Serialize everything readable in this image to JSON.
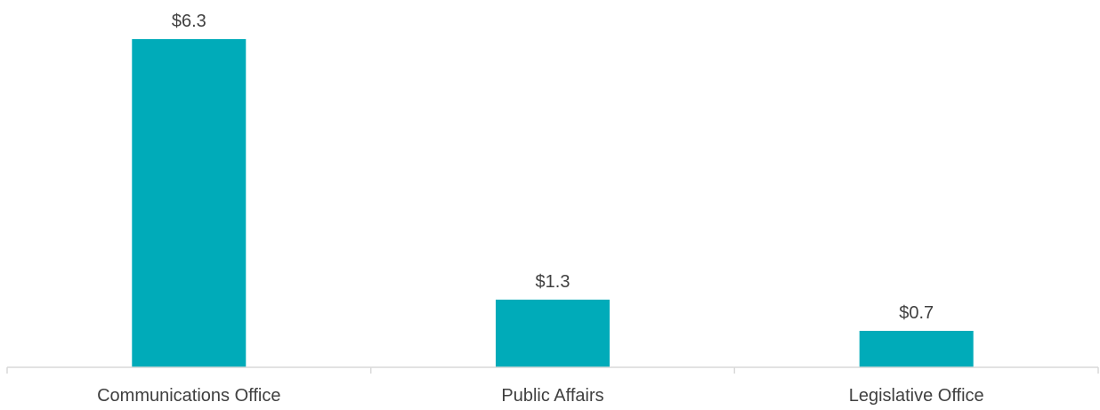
{
  "chart_data": {
    "type": "bar",
    "categories": [
      "Communications Office",
      "Public Affairs",
      "Legislative Office"
    ],
    "values": [
      6.3,
      1.3,
      0.7
    ],
    "value_labels": [
      "$6.3",
      "$1.3",
      "$0.7"
    ],
    "title": "",
    "xlabel": "",
    "ylabel": "",
    "ylim": [
      0,
      6.3
    ],
    "grid": false,
    "legend": "none",
    "bar_color": "#00abb9"
  }
}
